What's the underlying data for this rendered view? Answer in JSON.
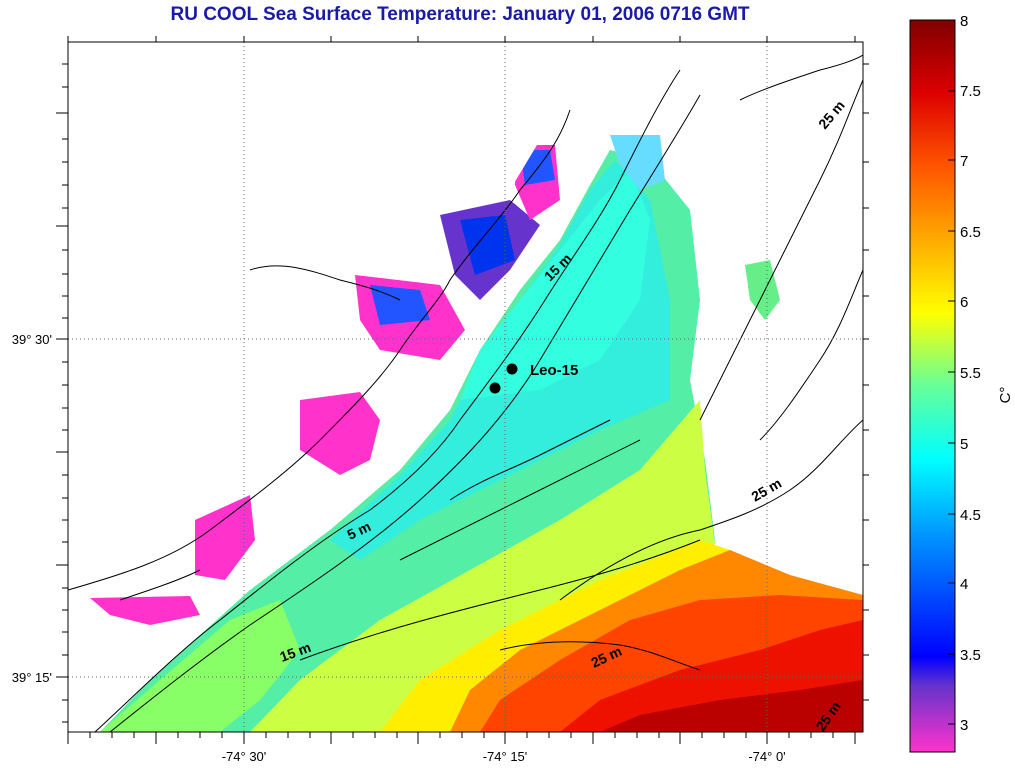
{
  "title": "RU COOL  Sea Surface Temperature:  January 01, 2006 0716 GMT",
  "map": {
    "x_ticks": [
      "-74° 30'",
      "-74° 15'",
      "-74° 0'"
    ],
    "y_ticks": [
      "39° 30'",
      "39° 15'"
    ],
    "station": {
      "label": "Leo-15"
    },
    "contour_labels": [
      "15 m",
      "25 m",
      "5 m",
      "25 m",
      "15 m",
      "25 m",
      "25 m"
    ]
  },
  "colorbar": {
    "unit": "C°",
    "ticks": [
      "8",
      "7.5",
      "7",
      "6.5",
      "6",
      "5.5",
      "5",
      "4.5",
      "4",
      "3.5",
      "3"
    ],
    "range": [
      2.8,
      8.2
    ],
    "colors": [
      "#ff33cc",
      "#6633cc",
      "#0000ff",
      "#0099ff",
      "#00ffff",
      "#66ff99",
      "#ffff00",
      "#ffaa00",
      "#ff3300",
      "#cc0000",
      "#800000"
    ]
  }
}
